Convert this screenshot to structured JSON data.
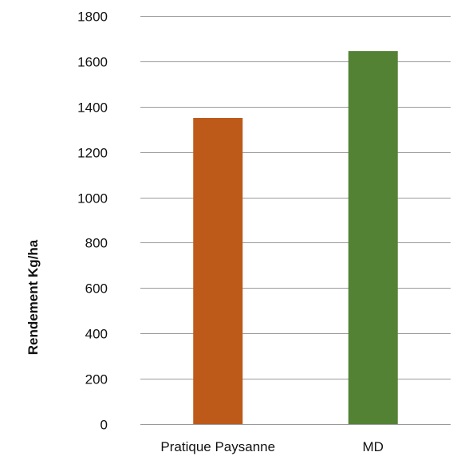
{
  "chart_data": {
    "type": "bar",
    "title": "",
    "xlabel": "",
    "ylabel": "Rendement Kg/ha",
    "categories": [
      "Pratique Paysanne",
      "MD"
    ],
    "values": [
      1350,
      1645
    ],
    "bar_colors": [
      "#bd5a1a",
      "#548235"
    ],
    "ylim": [
      0,
      1800
    ],
    "yticks": [
      0,
      200,
      400,
      600,
      800,
      1000,
      1200,
      1400,
      1600,
      1800
    ],
    "grid": true,
    "legend": "none"
  }
}
